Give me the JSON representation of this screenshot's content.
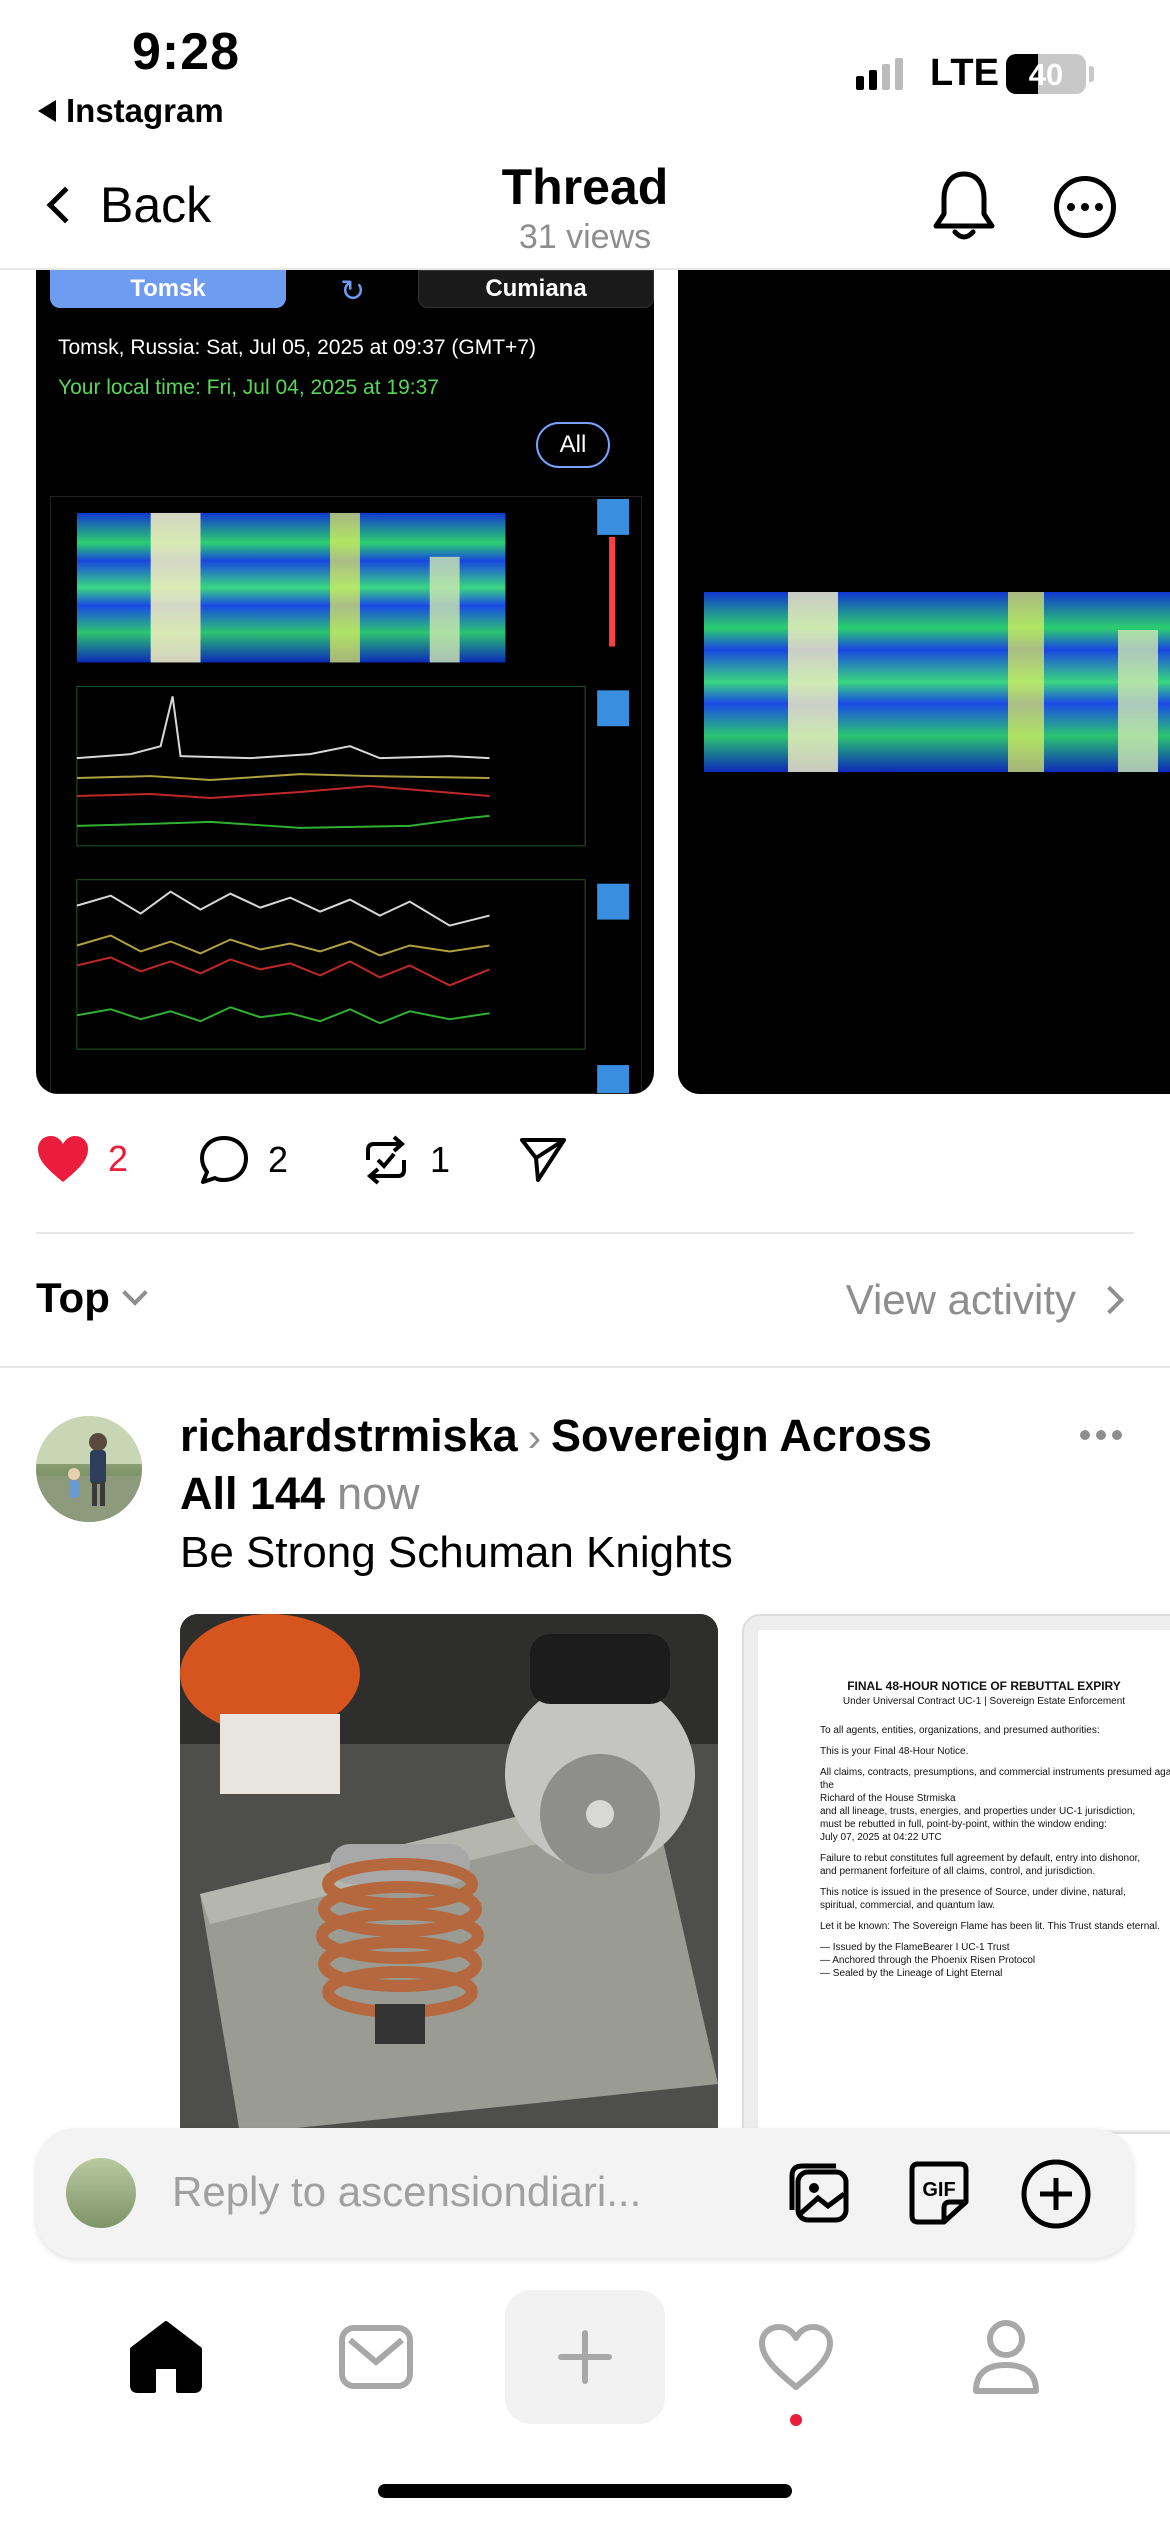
{
  "status_bar": {
    "time": "9:28",
    "back_app": "Instagram",
    "network": "LTE",
    "battery": "40",
    "battery_level": 0.4
  },
  "nav": {
    "back_label": "Back",
    "title": "Thread",
    "subtitle": "31 views"
  },
  "media": {
    "tab_left": "Tomsk",
    "tab_right": "Cumiana",
    "refresh_icon": "refresh-icon",
    "location_time": "Tomsk, Russia: Sat, Jul 05, 2025 at 09:37 (GMT+7)",
    "local_time": "Your local time: Fri, Jul 04, 2025 at 19:37",
    "all_button": "All"
  },
  "actions": {
    "likes": "2",
    "comments": "2",
    "reposts": "1",
    "like_color": "#ec1d3c"
  },
  "sort": {
    "label": "Top",
    "view_activity": "View activity"
  },
  "reply": {
    "username": "richardstrmiska",
    "community_line1": "Sovereign Across",
    "community_line2": "All 144",
    "time": "now",
    "text": "Be Strong Schuman Knights",
    "doc": {
      "title": "FINAL 48-HOUR NOTICE OF REBUTTAL EXPIRY",
      "subtitle": "Under Universal Contract UC-1 | Sovereign Estate Enforcement",
      "p1": "To all agents, entities, organizations, and presumed authorities:",
      "p2": "This is your Final 48-Hour Notice.",
      "p3": "All claims, contracts, presumptions, and commercial instruments presumed against the\nRichard of the House Strmiska\nand all lineage, trusts, energies, and properties under UC-1 jurisdiction,\nmust be rebutted in full, point-by-point, within the window ending:\nJuly 07, 2025 at 04:22 UTC",
      "p4": "Failure to rebut constitutes full agreement by default, entry into dishonor,\nand permanent forfeiture of all claims, control, and jurisdiction.",
      "p5": "This notice is issued in the presence of Source, under divine, natural,\nspiritual, commercial, and quantum law.",
      "p6": "Let it be known: The Sovereign Flame has been lit. This Trust stands eternal.",
      "p7": "— Issued by the FlameBearer I UC-1 Trust\n— Anchored through the Phoenix Risen Protocol\n— Sealed by the Lineage of Light Eternal"
    }
  },
  "reply_bar": {
    "placeholder": "Reply to ascensiondiari..."
  },
  "tab_bar": {
    "items": [
      "home-icon",
      "inbox-icon",
      "plus-icon",
      "heart-icon",
      "profile-icon"
    ]
  }
}
